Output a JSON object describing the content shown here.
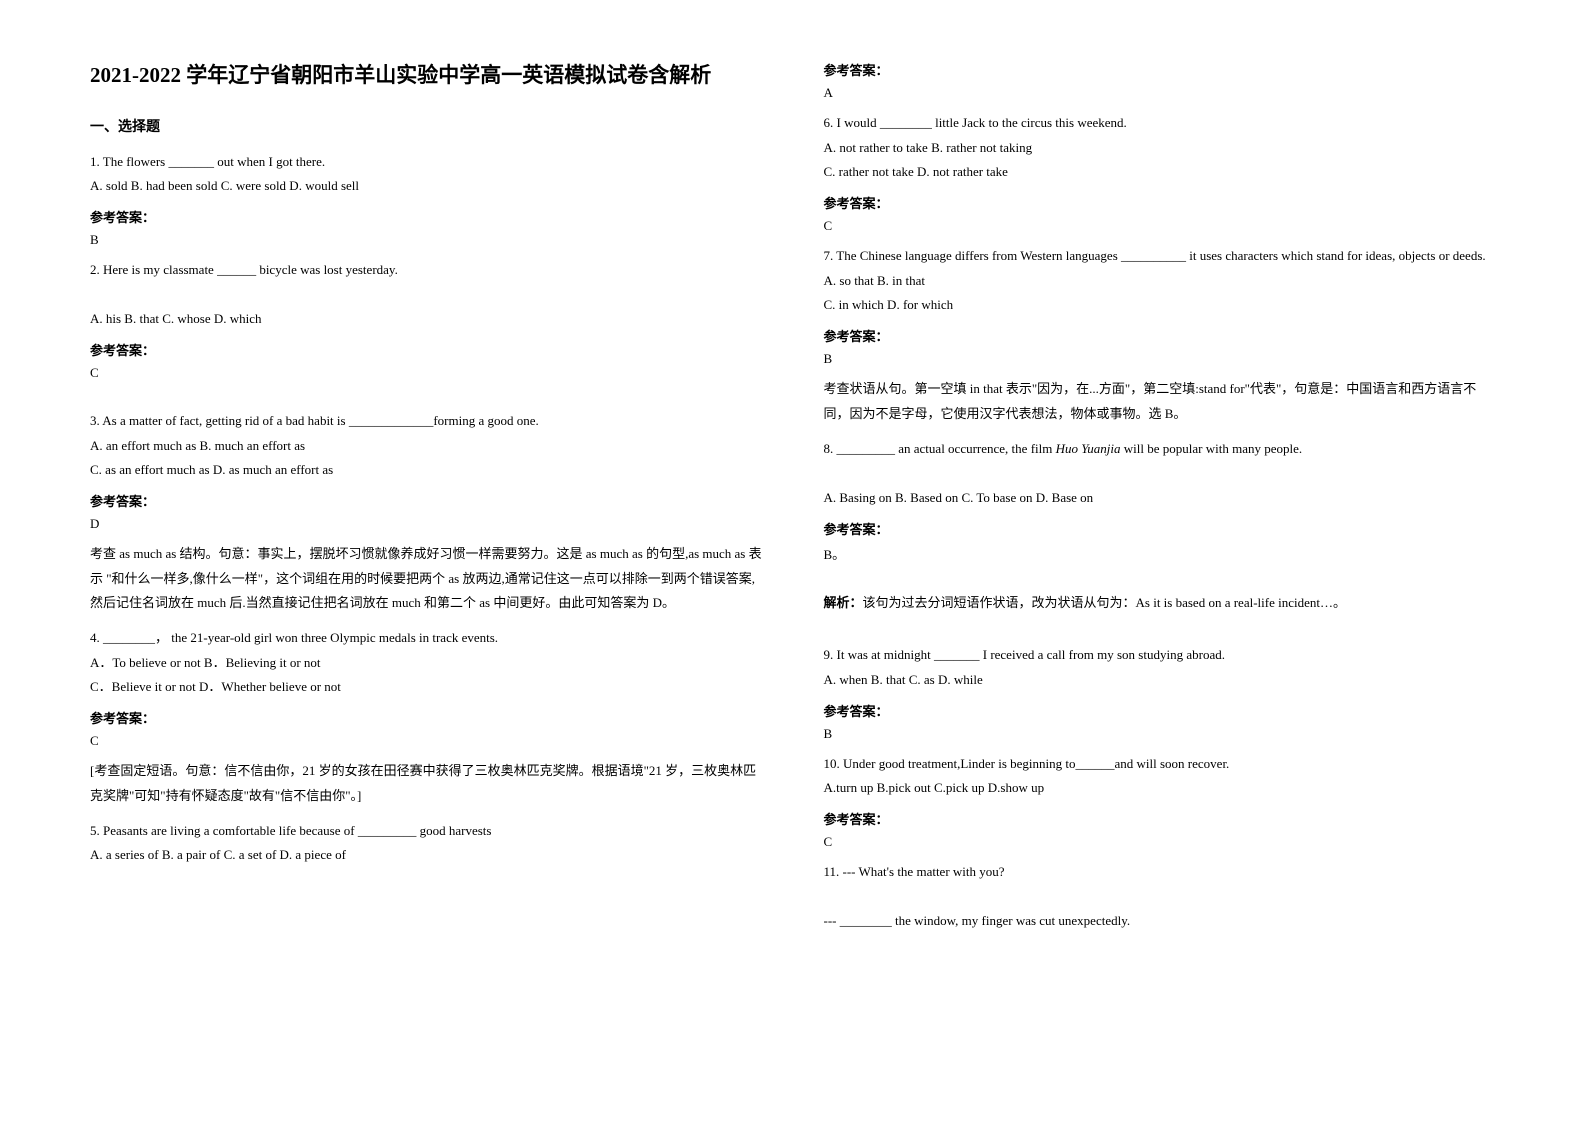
{
  "title": "2021-2022 学年辽宁省朝阳市羊山实验中学高一英语模拟试卷含解析",
  "section1_header": "一、选择题",
  "q1": {
    "text": "1. The flowers _______ out when I got there.",
    "options": "A. sold    B. had been sold    C. were sold    D. would sell",
    "answer_label": "参考答案：",
    "answer": "B"
  },
  "q2": {
    "text": "2. Here is my classmate ______ bicycle was lost yesterday.",
    "options": "A. his            B. that            C. whose          D. which",
    "answer_label": "参考答案：",
    "answer": "C"
  },
  "q3": {
    "text": "3. As a matter of fact, getting rid of a bad habit is _____________forming a good one.",
    "options_a": "A. an effort much as    B. much an effort as",
    "options_b": "C. as an effort much as    D. as much an effort as",
    "answer_label": "参考答案：",
    "answer": "D",
    "explanation": "考查 as much as 结构。句意：事实上，摆脱坏习惯就像养成好习惯一样需要努力。这是 as much as 的句型,as much as 表示 \"和什么一样多,像什么一样\"，这个词组在用的时候要把两个 as 放两边,通常记住这一点可以排除一到两个错误答案,然后记住名词放在 much 后.当然直接记住把名词放在 much 和第二个 as 中间更好。由此可知答案为 D。"
  },
  "q4": {
    "text": "4. ________，  the 21-year-old girl won three Olympic medals in track events.",
    "options_a": "A．To believe or not                    B．Believing it or not",
    "options_b": "C．Believe it or not                    D．Whether believe or not",
    "answer_label": "参考答案：",
    "answer": "C",
    "explanation": "[考查固定短语。句意：信不信由你，21 岁的女孩在田径赛中获得了三枚奥林匹克奖牌。根据语境\"21 岁，三枚奥林匹克奖牌\"可知\"持有怀疑态度\"故有\"信不信由你\"。]"
  },
  "q5": {
    "text": "5. Peasants are living a comfortable life because of _________ good harvests",
    "options": "A. a series of      B. a pair of      C. a set of      D. a piece of",
    "answer_label": "参考答案：",
    "answer": "A"
  },
  "q6": {
    "text": "6. I would ________ little Jack to the circus this weekend.",
    "options_a": "A. not rather to take      B. rather not taking",
    "options_b": "C. rather not take      D. not rather take",
    "answer_label": "参考答案：",
    "answer": "C"
  },
  "q7": {
    "text": "7. The Chinese language differs from Western languages __________ it uses characters which stand for ideas, objects or deeds.",
    "options_a": "A. so that    B. in that",
    "options_b": "C. in which    D. for which",
    "answer_label": "参考答案：",
    "answer": "B",
    "explanation": "考查状语从句。第一空填 in that 表示\"因为，在...方面\"，第二空填:stand for\"代表\"，句意是：中国语言和西方语言不同，因为不是字母，它使用汉字代表想法，物体或事物。选 B。"
  },
  "q8": {
    "text_prefix": "8. _________ an actual occurrence, the film ",
    "text_italic": "Huo Yuanjia",
    "text_suffix": " will be popular with many people.",
    "options": "   A. Basing on        B. Based on       C. To base on     D. Base on",
    "answer_label": "参考答案：",
    "answer": "B。",
    "explanation_label": "解析：",
    "explanation": "该句为过去分词短语作状语，改为状语从句为：As it is based on a real-life incident…。"
  },
  "q9": {
    "text": "9. It was at midnight _______ I received a call from my son studying abroad.",
    "options": "   A. when        B. that        C. as              D. while",
    "answer_label": "参考答案：",
    "answer": "B"
  },
  "q10": {
    "text": "10. Under good treatment,Linder is beginning to______and will soon recover.",
    "options": " A.turn up    B.pick out    C.pick up     D.show up",
    "answer_label": "参考答案：",
    "answer": "C"
  },
  "q11": {
    "text": "11. --- What's the matter with you?",
    "text2": "--- ________ the window, my finger was cut unexpectedly."
  }
}
